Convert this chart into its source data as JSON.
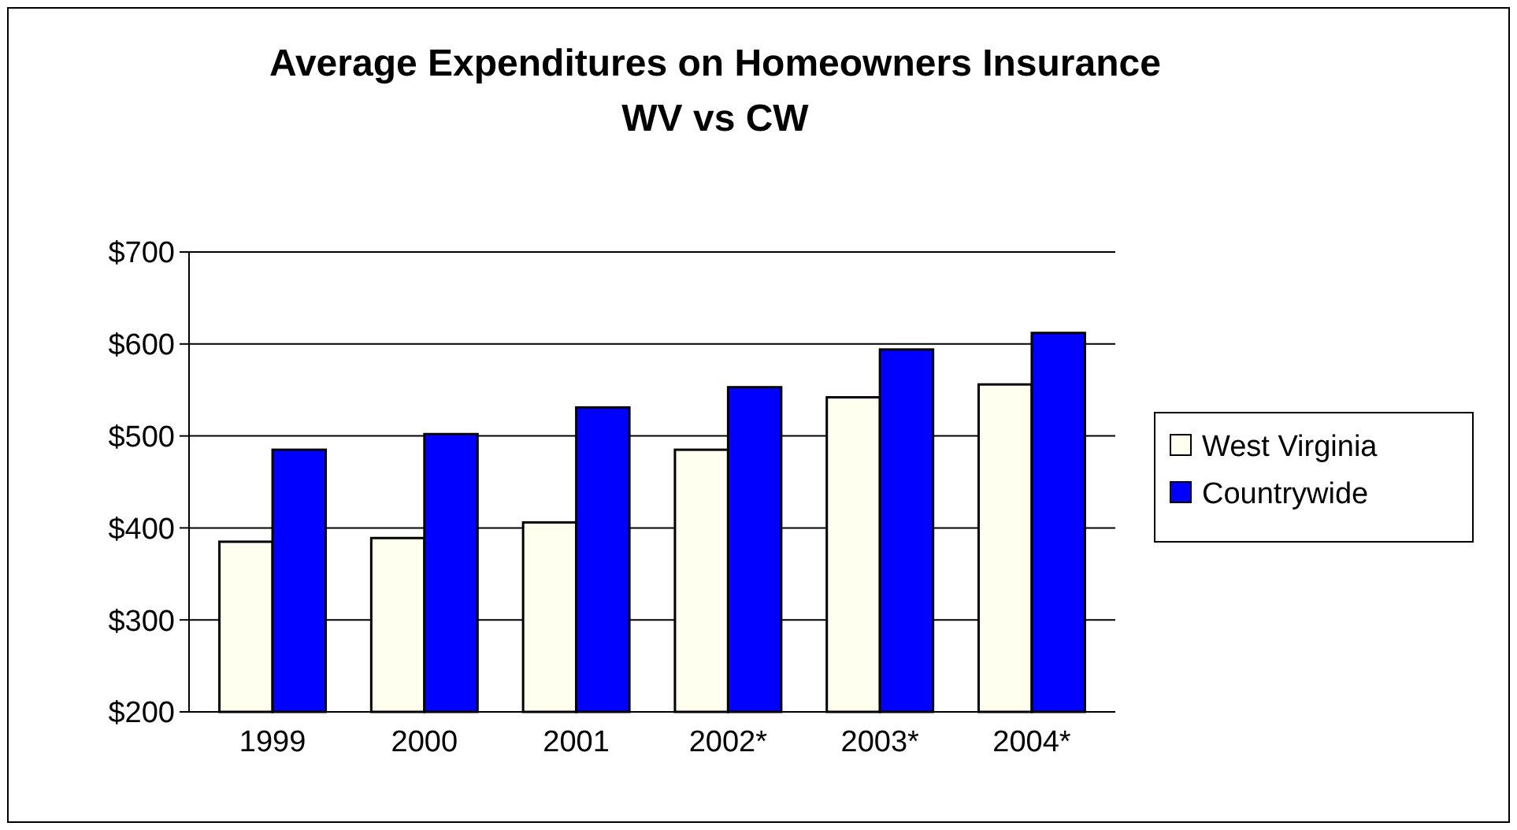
{
  "chart_data": {
    "type": "bar",
    "title": "Average Expenditures on Homeowners Insurance\nWV vs CW",
    "categories": [
      "1999",
      "2000",
      "2001",
      "2002*",
      "2003*",
      "2004*"
    ],
    "series": [
      {
        "name": "West Virginia",
        "color": "#fffff0",
        "values": [
          385,
          389,
          406,
          485,
          542,
          556
        ]
      },
      {
        "name": "Countrywide",
        "color": "#0000ff",
        "values": [
          485,
          502,
          531,
          553,
          594,
          612
        ]
      }
    ],
    "ylim": [
      200,
      700
    ],
    "yticks": [
      {
        "value": 200,
        "label": "$200"
      },
      {
        "value": 300,
        "label": "$300"
      },
      {
        "value": 400,
        "label": "$400"
      },
      {
        "value": 500,
        "label": "$500"
      },
      {
        "value": 600,
        "label": "$600"
      },
      {
        "value": 700,
        "label": "$700"
      }
    ],
    "grid": "y",
    "legend": "right"
  }
}
